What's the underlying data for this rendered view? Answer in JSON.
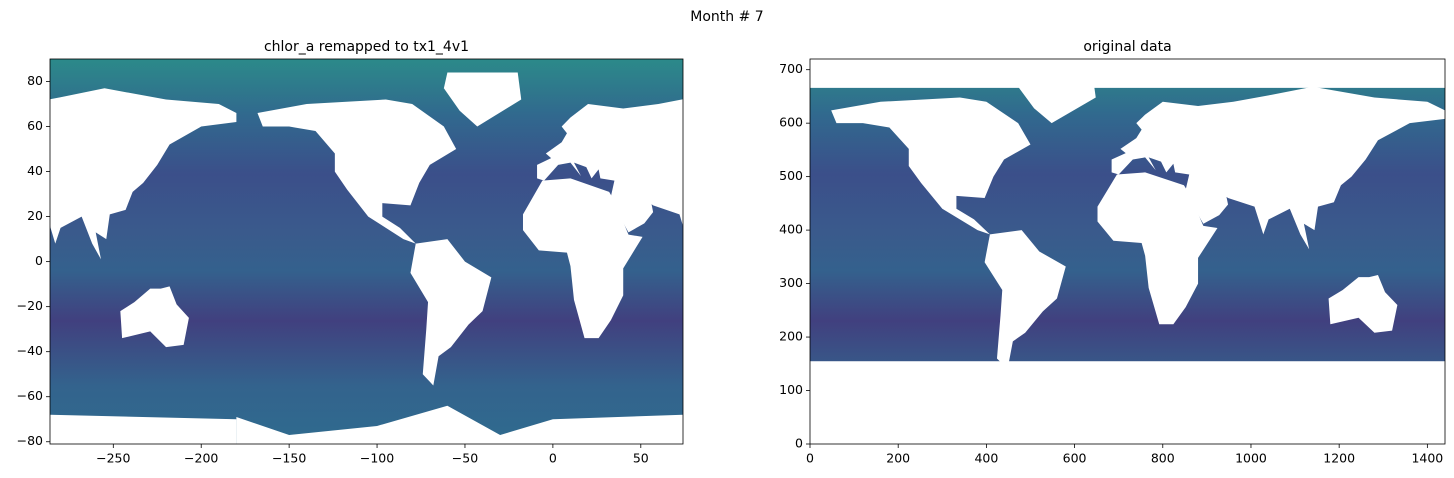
{
  "title": "Month # 7",
  "chart_data": [
    {
      "type": "heatmap",
      "title": "chlor_a remapped to tx1_4v1",
      "xlim": [
        -286,
        74
      ],
      "ylim": [
        -81,
        90
      ],
      "xticks": [
        {
          "value": -250,
          "label": "−250"
        },
        {
          "value": -200,
          "label": "−200"
        },
        {
          "value": -150,
          "label": "−150"
        },
        {
          "value": -100,
          "label": "−100"
        },
        {
          "value": -50,
          "label": "−50"
        },
        0,
        50
      ],
      "yticks": [
        {
          "value": -80,
          "label": "−80"
        },
        {
          "value": -60,
          "label": "−60"
        },
        {
          "value": -40,
          "label": "−40"
        },
        {
          "value": -20,
          "label": "−20"
        },
        0,
        20,
        40,
        60,
        80
      ]
    },
    {
      "type": "heatmap",
      "title": "original data",
      "xlim": [
        0,
        1440
      ],
      "ylim": [
        0,
        720
      ],
      "xticks": [
        0,
        200,
        400,
        600,
        800,
        1000,
        1200,
        1400
      ],
      "yticks": [
        0,
        100,
        200,
        300,
        400,
        500,
        600,
        700
      ]
    }
  ]
}
